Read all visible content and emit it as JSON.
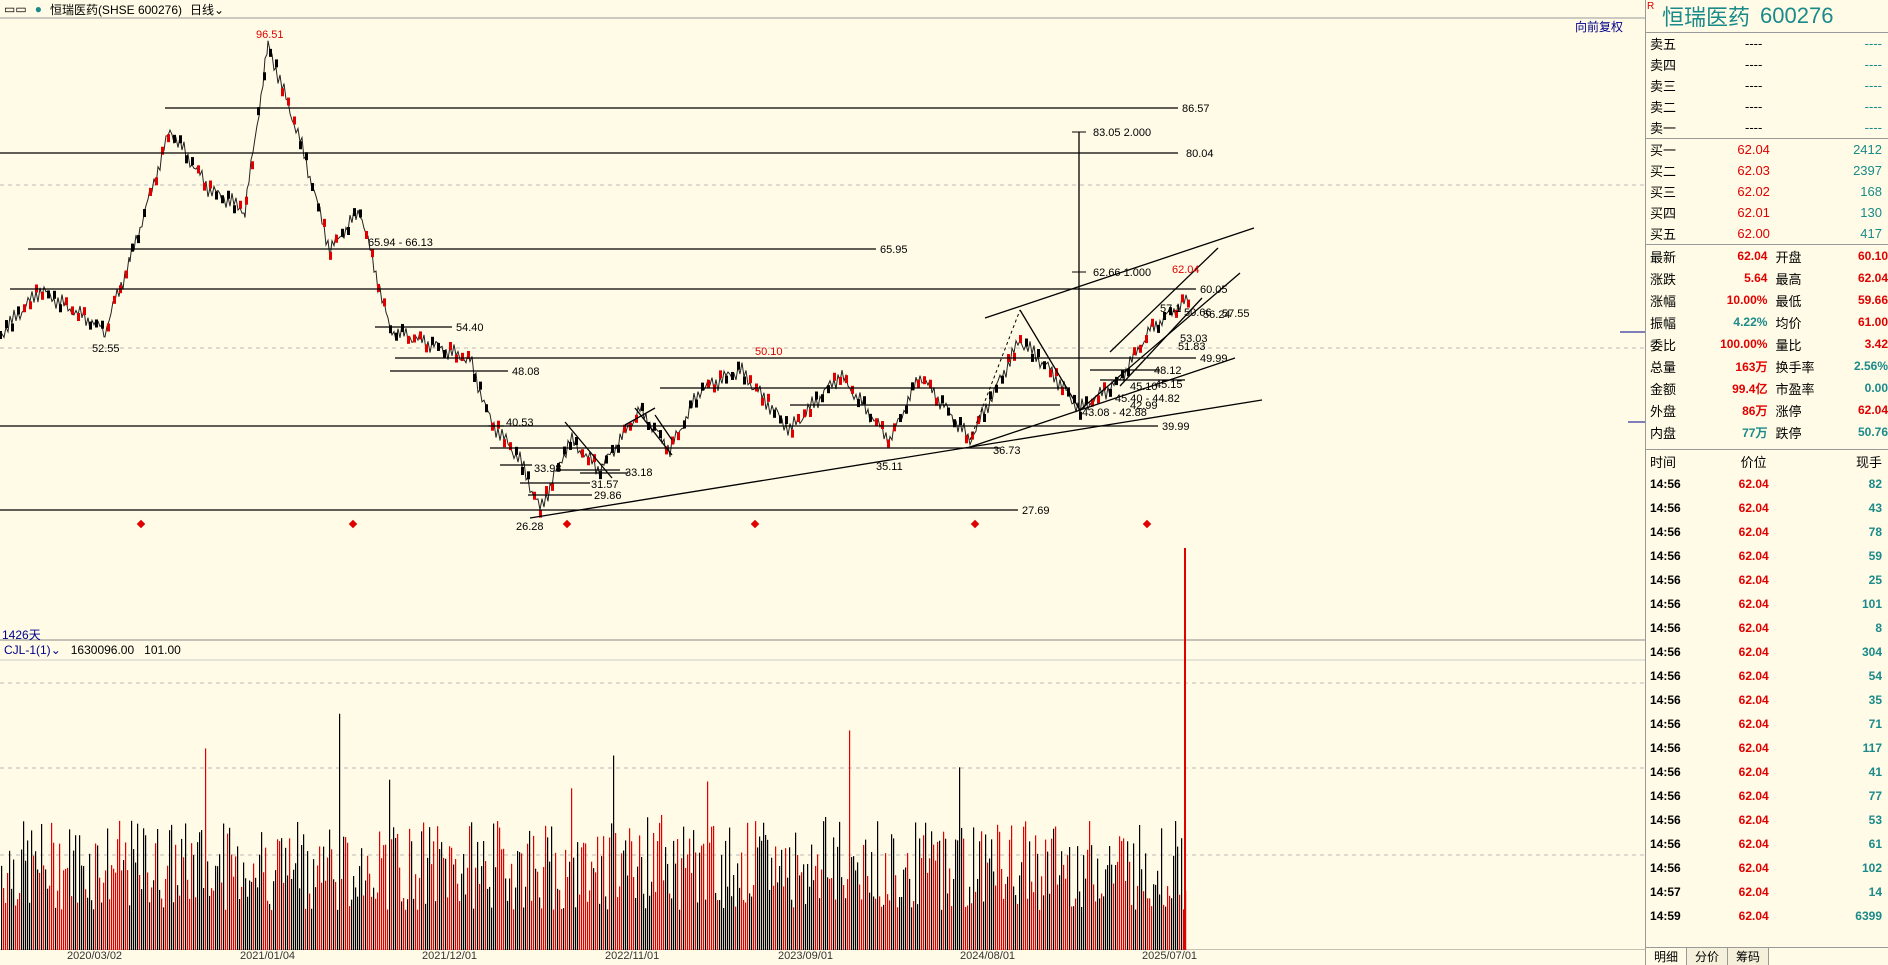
{
  "header": {
    "stock_title": "恒瑞医药(SHSE 600276)",
    "period": "日线",
    "adjust": "向前复权"
  },
  "chart_labels": {
    "days": "1426天",
    "levels": [
      "86.57",
      "80.04",
      "65.95",
      "65.94 - 66.13",
      "60.05",
      "57.55",
      "54.40",
      "52.55",
      "49.99",
      "48.12",
      "48.08",
      "45.15",
      "45.10",
      "45.40 - 44.82",
      "43.08 - 42.88",
      "42.99",
      "40.53",
      "39.99",
      "36.73",
      "35.11",
      "33.98",
      "33.18",
      "31.57",
      "29.86",
      "27.69",
      "26.28",
      "83.05 2.000",
      "62.66 1.000",
      "53.03",
      "51.83",
      "50.66",
      "56.24",
      "57.1"
    ],
    "high_label": "96.51",
    "mid_label": "50.10",
    "current_label": "62.04"
  },
  "volume_header": {
    "indicator": "CJL-1(1)",
    "vol": "1630096.00",
    "val": "101.00"
  },
  "date_axis": [
    "2020/03/02",
    "2021/01/04",
    "2021/12/01",
    "2022/11/01",
    "2023/09/01",
    "2024/08/01",
    "2025/07/01"
  ],
  "panel": {
    "flag": "R",
    "name": "恒瑞医药",
    "code": "600276",
    "sells": [
      {
        "label": "卖五",
        "price": "----",
        "vol": "----"
      },
      {
        "label": "卖四",
        "price": "----",
        "vol": "----"
      },
      {
        "label": "卖三",
        "price": "----",
        "vol": "----"
      },
      {
        "label": "卖二",
        "price": "----",
        "vol": "----"
      },
      {
        "label": "卖一",
        "price": "----",
        "vol": "----"
      }
    ],
    "buys": [
      {
        "label": "买一",
        "price": "62.04",
        "vol": "2412"
      },
      {
        "label": "买二",
        "price": "62.03",
        "vol": "2397"
      },
      {
        "label": "买三",
        "price": "62.02",
        "vol": "168"
      },
      {
        "label": "买四",
        "price": "62.01",
        "vol": "130"
      },
      {
        "label": "买五",
        "price": "62.00",
        "vol": "417"
      }
    ],
    "quote": [
      {
        "k1": "最新",
        "v1": "62.04",
        "c1": "red",
        "k2": "开盘",
        "v2": "60.10",
        "c2": "red"
      },
      {
        "k1": "涨跌",
        "v1": "5.64",
        "c1": "red",
        "k2": "最高",
        "v2": "62.04",
        "c2": "red"
      },
      {
        "k1": "涨幅",
        "v1": "10.00%",
        "c1": "red",
        "k2": "最低",
        "v2": "59.66",
        "c2": "red"
      },
      {
        "k1": "振幅",
        "v1": "4.22%",
        "c1": "teal",
        "k2": "均价",
        "v2": "61.00",
        "c2": "red"
      },
      {
        "k1": "委比",
        "v1": "100.00%",
        "c1": "red",
        "k2": "量比",
        "v2": "3.42",
        "c2": "red"
      },
      {
        "k1": "总量",
        "v1": "163万",
        "c1": "red",
        "k2": "换手率",
        "v2": "2.56%",
        "c2": "teal"
      },
      {
        "k1": "金额",
        "v1": "99.4亿",
        "c1": "red",
        "k2": "市盈率",
        "v2": "0.00",
        "c2": "teal"
      },
      {
        "k1": "外盘",
        "v1": "86万",
        "c1": "red",
        "k2": "涨停",
        "v2": "62.04",
        "c2": "red"
      },
      {
        "k1": "内盘",
        "v1": "77万",
        "c1": "teal",
        "k2": "跌停",
        "v2": "50.76",
        "c2": "teal"
      }
    ],
    "tick_header": [
      "时间",
      "价位",
      "现手"
    ],
    "ticks": [
      {
        "t": "14:56",
        "p": "62.04",
        "v": "82"
      },
      {
        "t": "14:56",
        "p": "62.04",
        "v": "43"
      },
      {
        "t": "14:56",
        "p": "62.04",
        "v": "78"
      },
      {
        "t": "14:56",
        "p": "62.04",
        "v": "59"
      },
      {
        "t": "14:56",
        "p": "62.04",
        "v": "25"
      },
      {
        "t": "14:56",
        "p": "62.04",
        "v": "101"
      },
      {
        "t": "14:56",
        "p": "62.04",
        "v": "8"
      },
      {
        "t": "14:56",
        "p": "62.04",
        "v": "304"
      },
      {
        "t": "14:56",
        "p": "62.04",
        "v": "54"
      },
      {
        "t": "14:56",
        "p": "62.04",
        "v": "35"
      },
      {
        "t": "14:56",
        "p": "62.04",
        "v": "71"
      },
      {
        "t": "14:56",
        "p": "62.04",
        "v": "117"
      },
      {
        "t": "14:56",
        "p": "62.04",
        "v": "41"
      },
      {
        "t": "14:56",
        "p": "62.04",
        "v": "77"
      },
      {
        "t": "14:56",
        "p": "62.04",
        "v": "53"
      },
      {
        "t": "14:56",
        "p": "62.04",
        "v": "61"
      },
      {
        "t": "14:56",
        "p": "62.04",
        "v": "102"
      },
      {
        "t": "14:57",
        "p": "62.04",
        "v": "14"
      },
      {
        "t": "14:59",
        "p": "62.04",
        "v": "6399"
      }
    ],
    "tabs": [
      "明细",
      "分价",
      "筹码"
    ]
  }
}
